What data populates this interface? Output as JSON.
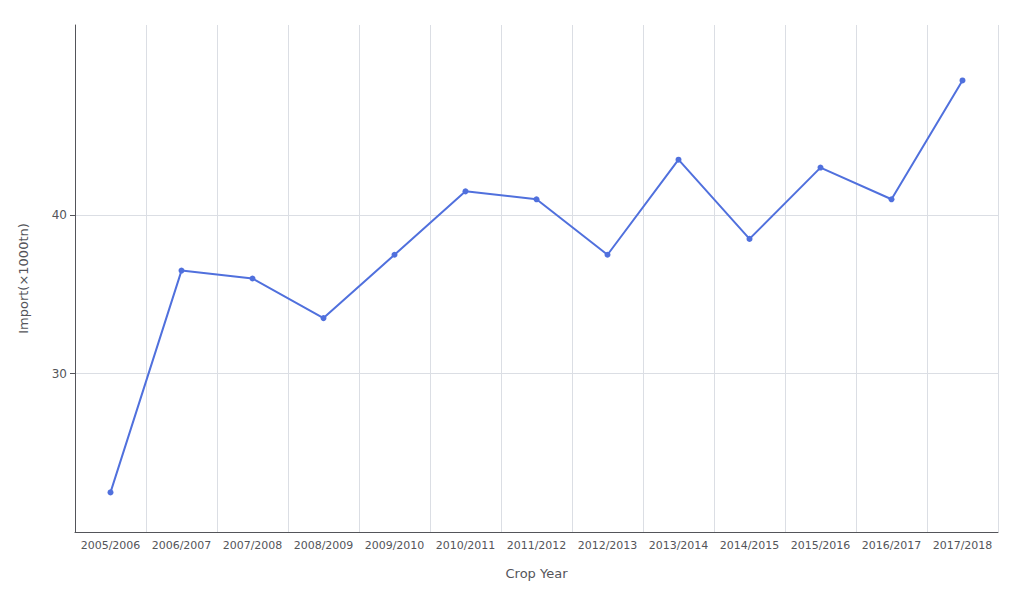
{
  "chart_data": {
    "type": "line",
    "xlabel": "Crop Year",
    "ylabel": "Import(×1000tn)",
    "categories": [
      "2005/2006",
      "2006/2007",
      "2007/2008",
      "2008/2009",
      "2009/2010",
      "2010/2011",
      "2011/2012",
      "2012/2013",
      "2013/2014",
      "2014/2015",
      "2015/2016",
      "2016/2017",
      "2017/2018"
    ],
    "values": [
      22.5,
      36.5,
      36.0,
      33.5,
      37.5,
      41.5,
      41.0,
      37.5,
      43.5,
      38.5,
      43.0,
      41.0,
      48.5
    ],
    "ylim": [
      20,
      52
    ],
    "yticks": [
      30,
      40
    ],
    "grid": true,
    "marker": "circle"
  }
}
